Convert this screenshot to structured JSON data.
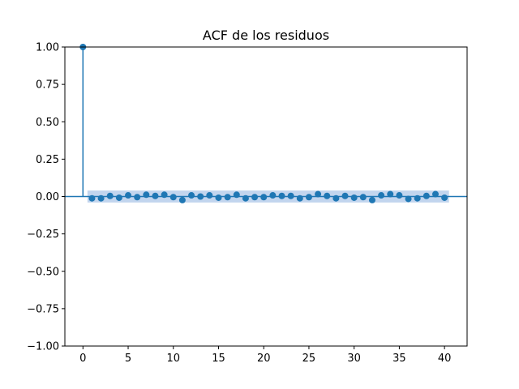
{
  "chart_data": {
    "type": "scatter",
    "title": "ACF de los residuos",
    "xlabel": "",
    "ylabel": "",
    "xlim": [
      -2,
      42.5
    ],
    "ylim": [
      -1.0,
      1.0
    ],
    "x_ticks": [
      0,
      5,
      10,
      15,
      20,
      25,
      30,
      35,
      40
    ],
    "x_tick_labels": [
      "0",
      "5",
      "10",
      "15",
      "20",
      "25",
      "30",
      "35",
      "40"
    ],
    "y_ticks": [
      -1.0,
      -0.75,
      -0.5,
      -0.25,
      0.0,
      0.25,
      0.5,
      0.75,
      1.0
    ],
    "y_tick_labels": [
      "−1.00",
      "−0.75",
      "−0.50",
      "−0.25",
      "0.00",
      "0.25",
      "0.50",
      "0.75",
      "1.00"
    ],
    "grid": false,
    "lags": [
      0,
      1,
      2,
      3,
      4,
      5,
      6,
      7,
      8,
      9,
      10,
      11,
      12,
      13,
      14,
      15,
      16,
      17,
      18,
      19,
      20,
      21,
      22,
      23,
      24,
      25,
      26,
      27,
      28,
      29,
      30,
      31,
      32,
      33,
      34,
      35,
      36,
      37,
      38,
      39,
      40
    ],
    "acf": [
      1.0,
      -0.012,
      -0.012,
      0.004,
      -0.008,
      0.008,
      -0.004,
      0.012,
      0.004,
      0.012,
      -0.004,
      -0.024,
      0.008,
      0.0,
      0.008,
      -0.008,
      -0.004,
      0.012,
      -0.012,
      -0.004,
      -0.004,
      0.008,
      0.004,
      0.004,
      -0.012,
      -0.004,
      0.016,
      0.004,
      -0.012,
      0.004,
      -0.008,
      -0.004,
      -0.024,
      0.008,
      0.016,
      0.008,
      -0.016,
      -0.012,
      0.004,
      0.016,
      -0.008
    ],
    "confidence_band": {
      "start_lag": 0.5,
      "end_lag": 40.5,
      "upper": 0.04,
      "lower": -0.04
    },
    "colors": {
      "marker": "#1f77b4",
      "band": "#aec7e8",
      "axes": "#000000"
    }
  }
}
